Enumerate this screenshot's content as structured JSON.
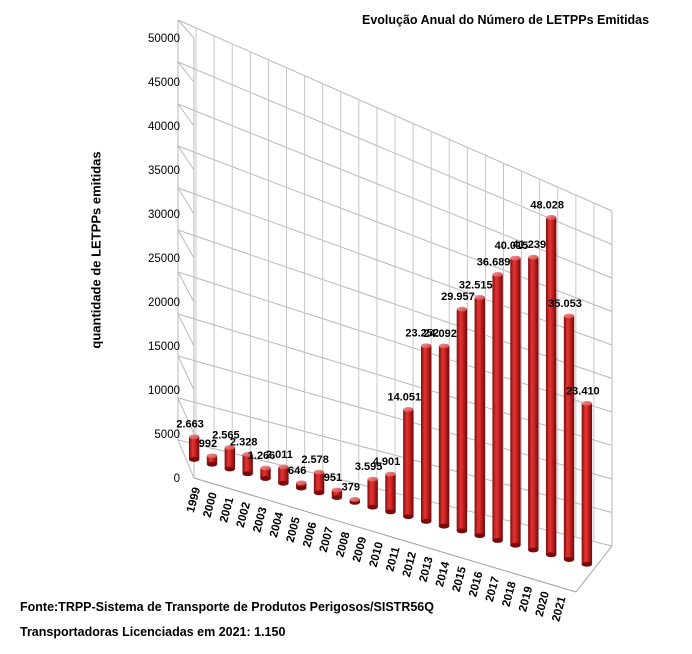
{
  "chart_data": {
    "type": "bar",
    "title": "Evolução Anual do Número de LETPPs Emitidas",
    "ylabel": "quantidade de LETPPs emitidas",
    "xlabel": "",
    "ylim": [
      0,
      50000
    ],
    "y_ticks": [
      "0",
      "5000",
      "10000",
      "15000",
      "20000",
      "25000",
      "30000",
      "35000",
      "40000",
      "45000",
      "50000"
    ],
    "grid": true,
    "legend": "none",
    "bar_color": "#c81e1e",
    "categories": [
      "1999",
      "2000",
      "2001",
      "2002",
      "2003",
      "2004",
      "2005",
      "2006",
      "2007",
      "2008",
      "2009",
      "2010",
      "2011",
      "2012",
      "2013",
      "2014",
      "2015",
      "2016",
      "2017",
      "2018",
      "2019",
      "2020",
      "2021"
    ],
    "values": [
      2663,
      992,
      2565,
      2328,
      1266,
      2011,
      646,
      2578,
      951,
      379,
      3595,
      4901,
      14051,
      23252,
      24092,
      29957,
      32515,
      36689,
      40015,
      41239,
      48028,
      35053,
      23410
    ],
    "data_labels": [
      "2.663",
      "992",
      "2.565",
      "2.328",
      "1.266",
      "2.011",
      "646",
      "2.578",
      "951",
      "379",
      "3.595",
      "4.901",
      "14.051",
      "23.252",
      "24.092",
      "29.957",
      "32.515",
      "36.689",
      "40.015",
      "41.239",
      "48.028",
      "35.053",
      "23.410"
    ]
  },
  "footer": {
    "source": "Fonte:TRPP-Sistema de Transporte de Produtos Perigosos/SISTR56Q",
    "licensed": "Transportadoras Licenciadas em  2021: 1.150"
  }
}
